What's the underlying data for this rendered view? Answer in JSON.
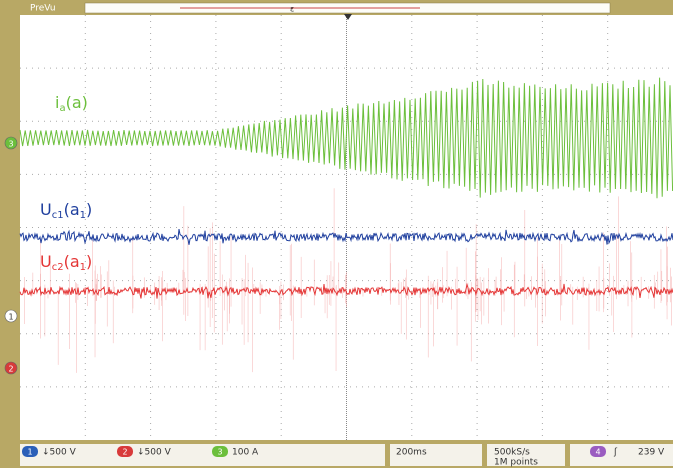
{
  "header": {
    "title": "PreVu"
  },
  "traces": [
    {
      "label": [
        "i",
        "a",
        "(a)"
      ],
      "color": "#6cbf3c"
    },
    {
      "label": [
        "U",
        "c1",
        "(a",
        "1",
        ")"
      ],
      "color": "#1f3f9e"
    },
    {
      "label": [
        "U",
        "c2",
        "(a",
        "1",
        ")"
      ],
      "color": "#e43535"
    }
  ],
  "markers": [
    "3",
    "1",
    "2"
  ],
  "status": {
    "channels": [
      {
        "id": "1",
        "scale": "↓500 V",
        "color": "#2a5fb8"
      },
      {
        "id": "2",
        "scale": "↓500 V",
        "color": "#d83a3a"
      },
      {
        "id": "3",
        "scale": "100 A",
        "color": "#6cbf3c"
      }
    ],
    "timebase": "200ms",
    "sample_rate": "500kS/s",
    "record": "1M points",
    "trigger": {
      "channel": "4",
      "color": "#9a5cc0",
      "slope": "ʃ",
      "level": "239 V"
    }
  }
}
